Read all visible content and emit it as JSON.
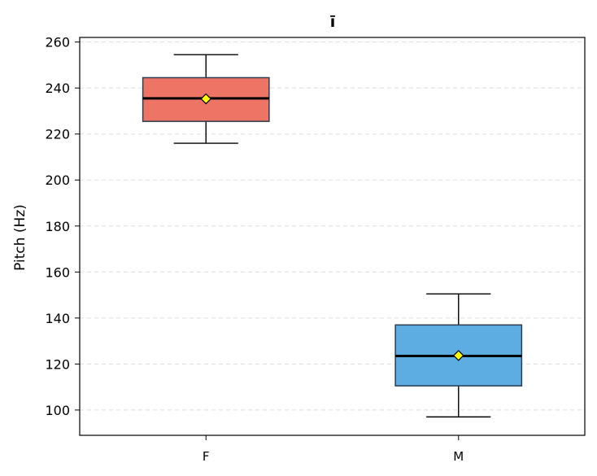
{
  "chart_data": {
    "type": "box",
    "title": "ī",
    "xlabel": "",
    "ylabel": "Pitch (Hz)",
    "ylim": [
      89,
      262
    ],
    "yticks": [
      100,
      120,
      140,
      160,
      180,
      200,
      220,
      240,
      260
    ],
    "grid": "horizontal dashed",
    "categories": [
      "F",
      "M"
    ],
    "boxes": [
      {
        "category": "F",
        "whisker_low": 216,
        "q1": 225.5,
        "median": 235.5,
        "q3": 244.5,
        "whisker_high": 254.5,
        "mean": 235.3,
        "color": "#ee7466"
      },
      {
        "category": "M",
        "whisker_low": 97,
        "q1": 110.5,
        "median": 123.5,
        "q3": 137,
        "whisker_high": 150.5,
        "mean": 123.7,
        "color": "#5dade2"
      }
    ],
    "mean_marker_color": "#ffff00",
    "median_color": "#000000"
  }
}
